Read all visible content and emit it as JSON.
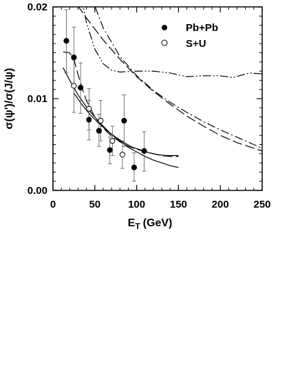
{
  "chart_data": {
    "type": "scatter",
    "xlabel": "E",
    "xlabel_sub": "T",
    "xlabel_unit": "(GeV)",
    "ylabel": "σ(ψ')/σ(J/ψ)",
    "xlim": [
      0,
      250
    ],
    "ylim": [
      0,
      0.02
    ],
    "xticks": [
      0,
      50,
      100,
      150,
      200,
      250
    ],
    "yticks": [
      0.0,
      0.01,
      0.02
    ],
    "xtick_labels": [
      "0",
      "50",
      "100",
      "150",
      "200",
      "250"
    ],
    "ytick_labels": [
      "0.00",
      "0.01",
      "0.02"
    ],
    "grid": false,
    "legend_position": "top-right",
    "series": [
      {
        "name": "Pb+Pb",
        "marker": "filled-circle",
        "points": [
          {
            "x": 16,
            "y": 0.0163,
            "ylo": 0.0128,
            "yhi": 0.0197
          },
          {
            "x": 25,
            "y": 0.0145,
            "ylo": 0.0112,
            "yhi": 0.0178
          },
          {
            "x": 33,
            "y": 0.0112,
            "ylo": 0.0084,
            "yhi": 0.0139
          },
          {
            "x": 43,
            "y": 0.0077,
            "ylo": 0.0055,
            "yhi": 0.0098
          },
          {
            "x": 55,
            "y": 0.0065,
            "ylo": 0.0048,
            "yhi": 0.0083
          },
          {
            "x": 68,
            "y": 0.0044,
            "ylo": 0.0029,
            "yhi": 0.0058
          },
          {
            "x": 85,
            "y": 0.0076,
            "ylo": 0.0048,
            "yhi": 0.0104
          },
          {
            "x": 97,
            "y": 0.0025,
            "ylo": 0.001,
            "yhi": 0.0041
          },
          {
            "x": 109,
            "y": 0.0043,
            "ylo": 0.0021,
            "yhi": 0.0064
          }
        ]
      },
      {
        "name": "S+U",
        "marker": "open-circle",
        "points": [
          {
            "x": 25,
            "y": 0.0114,
            "ylo": 0.0085,
            "yhi": 0.0142
          },
          {
            "x": 43,
            "y": 0.0089,
            "ylo": 0.0066,
            "yhi": 0.0111
          },
          {
            "x": 57,
            "y": 0.0076,
            "ylo": 0.0054,
            "yhi": 0.0098
          },
          {
            "x": 71,
            "y": 0.0054,
            "ylo": 0.0038,
            "yhi": 0.007
          },
          {
            "x": 83,
            "y": 0.0039,
            "ylo": 0.0024,
            "yhi": 0.0054
          }
        ]
      }
    ],
    "curves": [
      {
        "style": "solid",
        "points": [
          [
            12,
            0.0134
          ],
          [
            20,
            0.012
          ],
          [
            30,
            0.0104
          ],
          [
            40,
            0.0091
          ],
          [
            50,
            0.008
          ],
          [
            60,
            0.007
          ],
          [
            70,
            0.0061
          ],
          [
            80,
            0.0054
          ],
          [
            90,
            0.0047
          ],
          [
            100,
            0.0042
          ],
          [
            110,
            0.0037
          ],
          [
            120,
            0.0033
          ],
          [
            130,
            0.003
          ],
          [
            140,
            0.0027
          ],
          [
            150,
            0.0025
          ]
        ]
      },
      {
        "style": "solid",
        "points": [
          [
            25,
            0.0106
          ],
          [
            35,
            0.0093
          ],
          [
            45,
            0.0082
          ],
          [
            55,
            0.0073
          ],
          [
            65,
            0.0065
          ],
          [
            75,
            0.0058
          ],
          [
            85,
            0.0052
          ],
          [
            95,
            0.0047
          ],
          [
            105,
            0.0044
          ],
          [
            115,
            0.0041
          ],
          [
            125,
            0.0039
          ],
          [
            135,
            0.0038
          ],
          [
            150,
            0.0038
          ]
        ]
      },
      {
        "style": "long-dash",
        "points": [
          [
            12,
            0.0151
          ],
          [
            20,
            0.015
          ],
          [
            25,
            0.0143
          ],
          [
            30,
            0.0126
          ],
          [
            35,
            0.0111
          ],
          [
            40,
            0.0098
          ],
          [
            50,
            0.008
          ],
          [
            60,
            0.0068
          ],
          [
            70,
            0.0059
          ],
          [
            80,
            0.0053
          ],
          [
            90,
            0.0048
          ],
          [
            100,
            0.0045
          ],
          [
            110,
            0.0042
          ],
          [
            120,
            0.004
          ],
          [
            130,
            0.0038
          ],
          [
            140,
            0.0037
          ],
          [
            150,
            0.0037
          ]
        ]
      },
      {
        "style": "dash-dot-dot",
        "points": [
          [
            30,
            0.0228
          ],
          [
            40,
            0.0183
          ],
          [
            50,
            0.0154
          ],
          [
            60,
            0.0138
          ],
          [
            70,
            0.0131
          ],
          [
            80,
            0.0129
          ],
          [
            100,
            0.013
          ],
          [
            120,
            0.013
          ],
          [
            140,
            0.0128
          ],
          [
            160,
            0.0124
          ],
          [
            180,
            0.0125
          ],
          [
            200,
            0.0125
          ],
          [
            215,
            0.0123
          ],
          [
            235,
            0.0128
          ],
          [
            250,
            0.0127
          ]
        ]
      },
      {
        "style": "long-dash",
        "points": [
          [
            29,
            0.0202
          ],
          [
            40,
            0.0188
          ],
          [
            60,
            0.0164
          ],
          [
            80,
            0.0143
          ],
          [
            100,
            0.0124
          ],
          [
            120,
            0.0108
          ],
          [
            140,
            0.0094
          ],
          [
            160,
            0.0081
          ],
          [
            180,
            0.007
          ],
          [
            200,
            0.006
          ],
          [
            220,
            0.0052
          ],
          [
            240,
            0.0046
          ],
          [
            250,
            0.0043
          ]
        ]
      },
      {
        "style": "dash-dot",
        "points": [
          [
            43,
            0.0232
          ],
          [
            50,
            0.0201
          ],
          [
            60,
            0.0177
          ],
          [
            80,
            0.0146
          ],
          [
            100,
            0.0125
          ],
          [
            120,
            0.0109
          ],
          [
            140,
            0.0096
          ],
          [
            160,
            0.0085
          ],
          [
            180,
            0.0075
          ],
          [
            200,
            0.0066
          ],
          [
            220,
            0.0058
          ],
          [
            240,
            0.005
          ],
          [
            250,
            0.0046
          ]
        ]
      }
    ]
  }
}
